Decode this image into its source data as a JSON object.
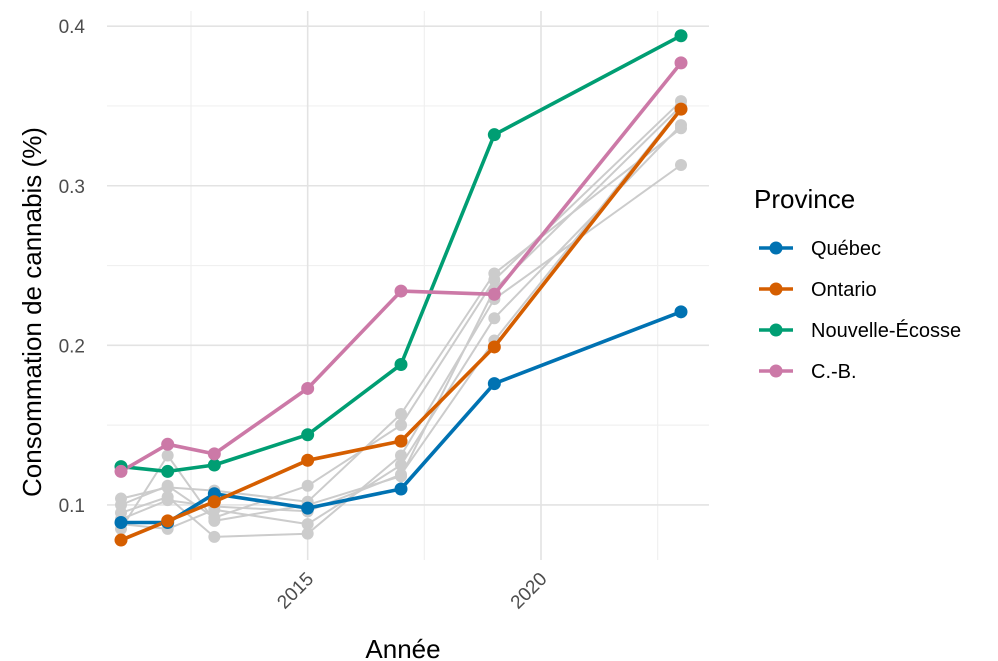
{
  "chart_data": {
    "type": "line",
    "title": "",
    "xlabel": "Année",
    "ylabel": "Consommation de cannabis (%)",
    "xlim": [
      2010.7,
      2023.6
    ],
    "ylim": [
      0.0655,
      0.4095
    ],
    "x_ticks": [
      2015,
      2020
    ],
    "x_minor_ticks": [
      2012.5,
      2017.5,
      2022.5
    ],
    "y_ticks": [
      0.1,
      0.2,
      0.3,
      0.4
    ],
    "y_minor_ticks": [
      0.15,
      0.25,
      0.35
    ],
    "x_tick_labels": [
      "2015",
      "2020"
    ],
    "y_tick_labels": [
      "0.1",
      "0.2",
      "0.3",
      "0.4"
    ],
    "grid": true,
    "legend": {
      "title": "Province",
      "position": "right",
      "entries": [
        "Québec",
        "Ontario",
        "Nouvelle-Écosse",
        "C.-B."
      ]
    },
    "x": [
      2011,
      2012,
      2013,
      2015,
      2017,
      2019,
      2023
    ],
    "series": [
      {
        "name": "Québec",
        "color": "#0072B2",
        "values": [
          0.089,
          0.089,
          0.107,
          0.098,
          0.11,
          0.176,
          0.221
        ]
      },
      {
        "name": "Ontario",
        "color": "#D55E00",
        "values": [
          0.078,
          0.09,
          0.102,
          0.128,
          0.14,
          0.199,
          0.348
        ]
      },
      {
        "name": "Nouvelle-Écosse",
        "color": "#009E73",
        "values": [
          0.124,
          0.121,
          0.125,
          0.144,
          0.188,
          0.332,
          0.394
        ]
      },
      {
        "name": "C.-B.",
        "color": "#CC79A7",
        "values": [
          0.121,
          0.138,
          0.132,
          0.173,
          0.234,
          0.232,
          0.377
        ]
      }
    ],
    "other_series": {
      "color": "#CCCCCC",
      "lines": [
        [
          0.104,
          0.111,
          0.109,
          0.102,
          0.157,
          0.245,
          0.336
        ],
        [
          0.1,
          0.112,
          0.092,
          0.112,
          0.15,
          0.241,
          0.353
        ],
        [
          0.095,
          0.105,
          0.08,
          0.082,
          0.131,
          0.229,
          0.313
        ],
        [
          0.088,
          0.085,
          0.097,
          0.088,
          0.125,
          0.217,
          0.338
        ],
        [
          0.091,
          0.103,
          0.099,
          0.096,
          0.119,
          0.203,
          0.349
        ],
        [
          0.085,
          0.131,
          0.09,
          0.1,
          0.118,
          0.235,
          0.35
        ]
      ]
    }
  }
}
